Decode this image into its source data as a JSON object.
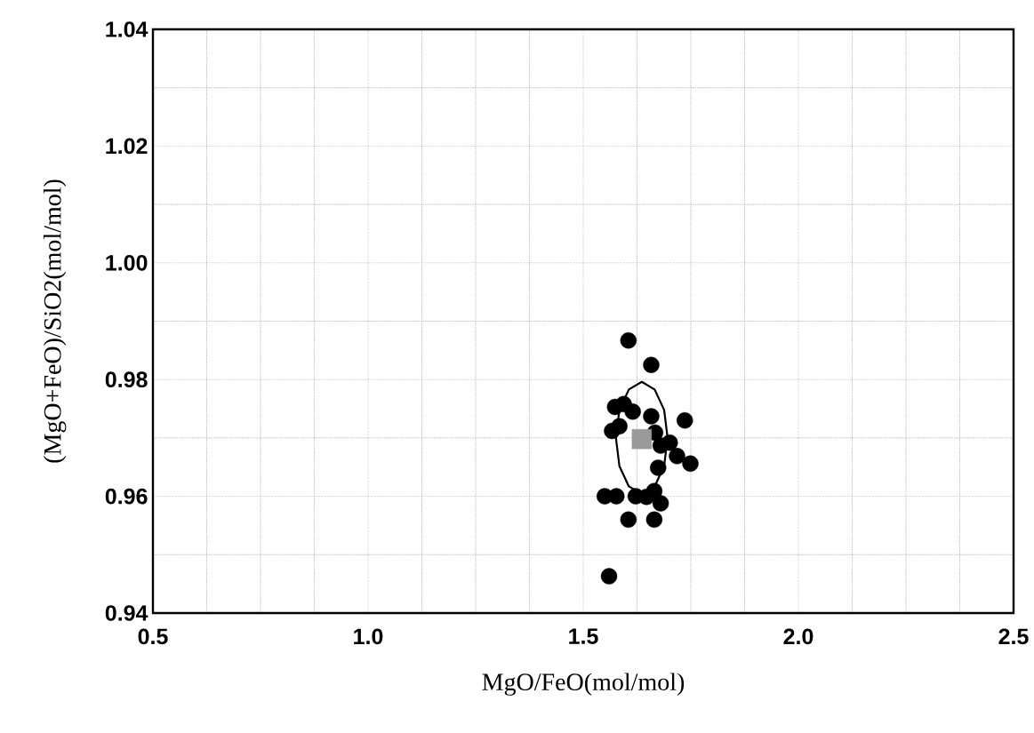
{
  "chart_data": {
    "type": "scatter",
    "xlabel": "MgO/FeO(mol/mol)",
    "ylabel": "(MgO+FeO)/SiO2(mol/mol)",
    "xlim": [
      0.5,
      2.5
    ],
    "ylim": [
      0.94,
      1.04
    ],
    "xticks": [
      0.5,
      {
        "value": 1.0,
        "label": "1.0"
      },
      1.5,
      {
        "value": 2.0,
        "label": "2.0"
      },
      2.5
    ],
    "yticks": [
      0.94,
      0.96,
      0.98,
      {
        "value": 1.0,
        "label": "1.00"
      },
      1.02,
      1.04
    ],
    "grid": true,
    "series": [
      {
        "type": "scatter",
        "marker": "circle",
        "color": "#000000",
        "x": [
          1.605,
          1.658,
          1.574,
          1.594,
          1.615,
          1.658,
          1.567,
          1.584,
          1.736,
          1.667,
          1.68,
          1.701,
          1.718,
          1.749,
          1.674,
          1.55,
          1.577,
          1.622,
          1.647,
          1.665,
          1.68,
          1.605,
          1.665,
          1.56
        ],
        "values": [
          0.9867,
          0.9825,
          0.9753,
          0.9758,
          0.9745,
          0.9737,
          0.9712,
          0.972,
          0.973,
          0.9709,
          0.9687,
          0.9692,
          0.9669,
          0.9656,
          0.9649,
          0.96,
          0.96,
          0.96,
          0.9599,
          0.9609,
          0.9588,
          0.956,
          0.956,
          0.9463
        ]
      },
      {
        "type": "scatter",
        "marker": "square",
        "color": "#999999",
        "x": [
          1.636
        ],
        "values": [
          0.9698
        ]
      },
      {
        "type": "line",
        "marker": "none",
        "color": "#000000",
        "x": [
          1.576,
          1.584,
          1.606,
          1.636,
          1.666,
          1.688,
          1.696
        ],
        "values": [
          0.97,
          0.9748,
          0.9783,
          0.9796,
          0.9783,
          0.9748,
          0.97
        ]
      },
      {
        "type": "line",
        "marker": "none",
        "color": "#000000",
        "x": [
          1.576,
          1.584,
          1.606,
          1.636,
          1.666,
          1.688,
          1.696
        ],
        "values": [
          0.97,
          0.9652,
          0.9617,
          0.9604,
          0.9617,
          0.9652,
          0.97
        ]
      }
    ]
  }
}
